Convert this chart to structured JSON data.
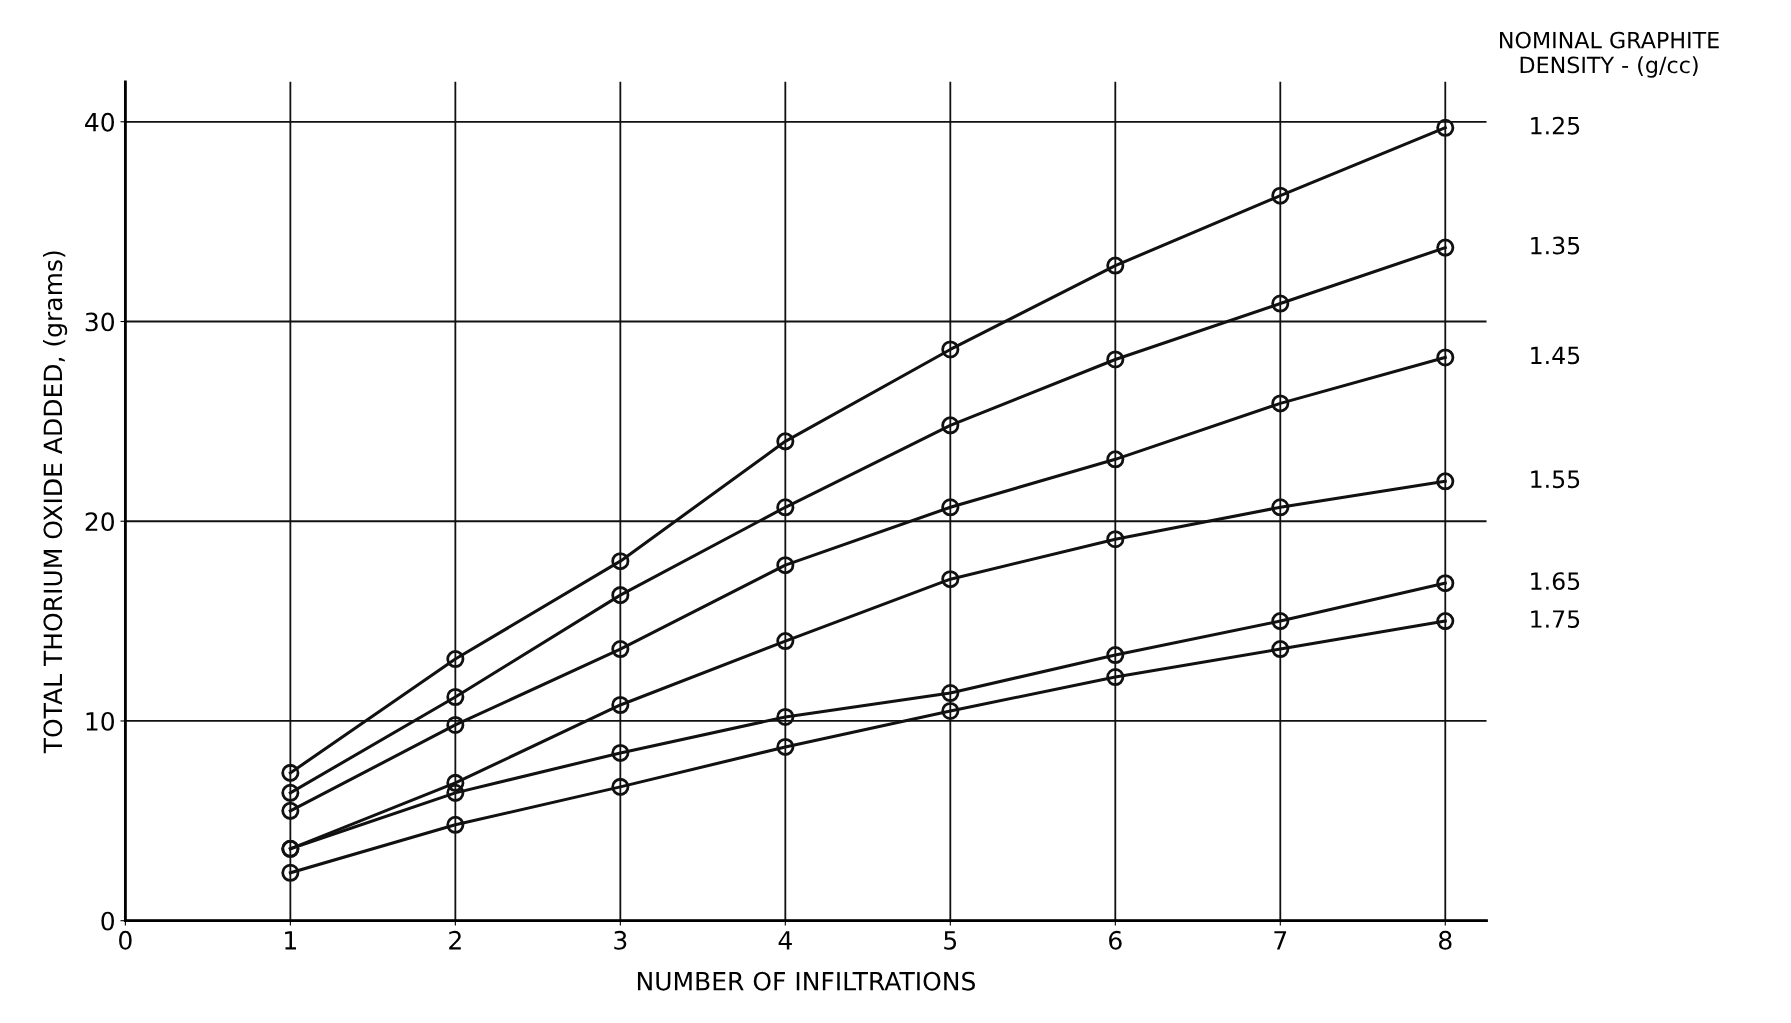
{
  "chart_data": {
    "type": "line",
    "xlabel": "NUMBER OF INFILTRATIONS",
    "ylabel": "TOTAL THORIUM OXIDE ADDED, (grams)",
    "legend_title": "NOMINAL GRAPHITE\nDENSITY - (g/cc)",
    "x": [
      1,
      2,
      3,
      4,
      5,
      6,
      7,
      8
    ],
    "series": [
      {
        "name": "1.25",
        "color": "#111111",
        "values": [
          7.4,
          13.1,
          18.0,
          24.0,
          28.6,
          32.8,
          36.3,
          39.7
        ]
      },
      {
        "name": "1.35",
        "color": "#111111",
        "values": [
          6.4,
          11.2,
          16.3,
          20.7,
          24.8,
          28.1,
          30.9,
          33.7
        ]
      },
      {
        "name": "1.45",
        "color": "#111111",
        "values": [
          5.5,
          9.8,
          13.6,
          17.8,
          20.7,
          23.1,
          25.9,
          28.2
        ]
      },
      {
        "name": "1.55",
        "color": "#111111",
        "values": [
          3.6,
          6.9,
          10.8,
          14.0,
          17.1,
          19.1,
          20.7,
          22.0
        ]
      },
      {
        "name": "1.65",
        "color": "#111111",
        "values": [
          3.6,
          6.4,
          8.4,
          10.2,
          11.4,
          13.3,
          15.0,
          16.9
        ]
      },
      {
        "name": "1.75",
        "color": "#111111",
        "values": [
          2.4,
          4.8,
          6.7,
          8.7,
          10.5,
          12.2,
          13.6,
          15.0
        ]
      }
    ],
    "xlim": [
      0,
      8.25
    ],
    "ylim": [
      0,
      42
    ],
    "xticks": [
      0,
      1,
      2,
      3,
      4,
      5,
      6,
      7,
      8
    ],
    "yticks": [
      0,
      10,
      20,
      30,
      40
    ],
    "grid": true,
    "legend": false,
    "marker": "circle",
    "line_style": "solid"
  }
}
